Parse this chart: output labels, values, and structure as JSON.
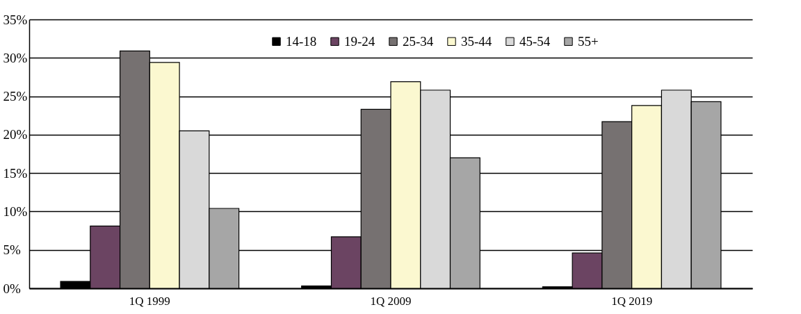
{
  "chart_data": {
    "type": "bar",
    "categories": [
      "1Q 1999",
      "1Q 2009",
      "1Q 2019"
    ],
    "series": [
      {
        "name": "14-18",
        "color": "#000000",
        "values": [
          0.9,
          0.3,
          0.2
        ]
      },
      {
        "name": "19-24",
        "color": "#6b4462",
        "values": [
          8.1,
          6.7,
          4.6
        ]
      },
      {
        "name": "25-34",
        "color": "#767171",
        "values": [
          30.9,
          23.3,
          21.7
        ]
      },
      {
        "name": "35-44",
        "color": "#fbf8d0",
        "values": [
          29.4,
          26.9,
          23.8
        ]
      },
      {
        "name": "45-54",
        "color": "#d9d9d9",
        "values": [
          20.5,
          25.8,
          25.8
        ]
      },
      {
        "name": "55+",
        "color": "#a6a6a6",
        "values": [
          10.4,
          17.0,
          24.3
        ]
      }
    ],
    "ylim": [
      0,
      35
    ],
    "yticks": [
      {
        "value": 0,
        "label": "0%"
      },
      {
        "value": 5,
        "label": "5%"
      },
      {
        "value": 10,
        "label": "10%"
      },
      {
        "value": 15,
        "label": "15%"
      },
      {
        "value": 20,
        "label": "20%"
      },
      {
        "value": 25,
        "label": "25%"
      },
      {
        "value": 30,
        "label": "30%"
      },
      {
        "value": 35,
        "label": "35%"
      }
    ],
    "grid": "y",
    "legend": "top"
  }
}
